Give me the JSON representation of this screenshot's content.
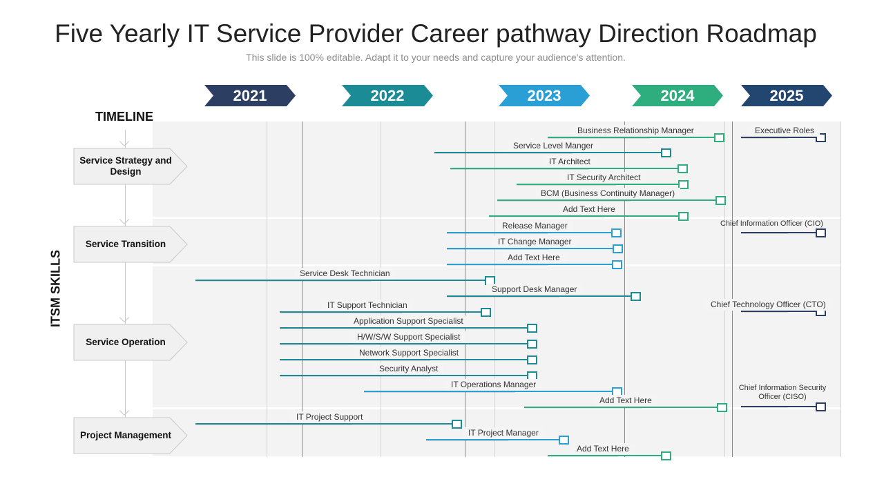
{
  "header": {
    "title": "Five Yearly IT Service Provider Career pathway Direction Roadmap",
    "subtitle": "This slide is 100% editable. Adapt it to your needs and capture your audience's attention."
  },
  "timeline_label": "TIMELINE",
  "axis_label": "ITSM SKILLS",
  "years": [
    {
      "label": "2021",
      "color": "#2c3e62"
    },
    {
      "label": "2022",
      "color": "#1b8c96"
    },
    {
      "label": "2023",
      "color": "#2a9fd6"
    },
    {
      "label": "2024",
      "color": "#2eae7f"
    },
    {
      "label": "2025",
      "color": "#22466f"
    }
  ],
  "categories": [
    {
      "label": "Service Strategy and Design"
    },
    {
      "label": "Service Transition"
    },
    {
      "label": "Service Operation"
    },
    {
      "label": "Project Management"
    }
  ],
  "roles": [
    {
      "label": "Business Relationship Manager",
      "color": "#2eae7f"
    },
    {
      "label": "Executive Roles",
      "color": "#2c3e62"
    },
    {
      "label": "Service Level Manger",
      "color": "#1b8c96"
    },
    {
      "label": "IT Architect",
      "color": "#2eae7f"
    },
    {
      "label": "IT Security Architect",
      "color": "#2eae7f"
    },
    {
      "label": "BCM (Business Continuity Manager)",
      "color": "#2eae7f"
    },
    {
      "label": "Add Text Here",
      "color": "#2eae7f"
    },
    {
      "label": "Release Manager",
      "color": "#2a9fd6"
    },
    {
      "label": "Chief Information Officer (CIO)",
      "color": "#2c3e62"
    },
    {
      "label": "IT Change Manager",
      "color": "#2a9fd6"
    },
    {
      "label": "Add Text Here",
      "color": "#2a9fd6"
    },
    {
      "label": "Service Desk Technician",
      "color": "#1b8c96"
    },
    {
      "label": "Support Desk Manager",
      "color": "#1b8c96"
    },
    {
      "label": "IT Support Technician",
      "color": "#1b8c96"
    },
    {
      "label": "Chief Technology Officer (CTO)",
      "color": "#2c3e62"
    },
    {
      "label": "Application Support Specialist",
      "color": "#1b8c96"
    },
    {
      "label": "H/W/S/W Support Specialist",
      "color": "#1b8c96"
    },
    {
      "label": "Network Support Specialist",
      "color": "#1b8c96"
    },
    {
      "label": "Security Analyst",
      "color": "#1b8c96"
    },
    {
      "label": "IT Operations Manager",
      "color": "#2a9fd6"
    },
    {
      "label": "Chief Information Security Officer (CISO)",
      "color": "#2c3e62"
    },
    {
      "label": "Add Text Here",
      "color": "#2eae7f"
    },
    {
      "label": "IT Project Support",
      "color": "#1b8c96"
    },
    {
      "label": "IT Project Manager",
      "color": "#2a9fd6"
    },
    {
      "label": "Add Text Here",
      "color": "#2eae7f"
    }
  ]
}
